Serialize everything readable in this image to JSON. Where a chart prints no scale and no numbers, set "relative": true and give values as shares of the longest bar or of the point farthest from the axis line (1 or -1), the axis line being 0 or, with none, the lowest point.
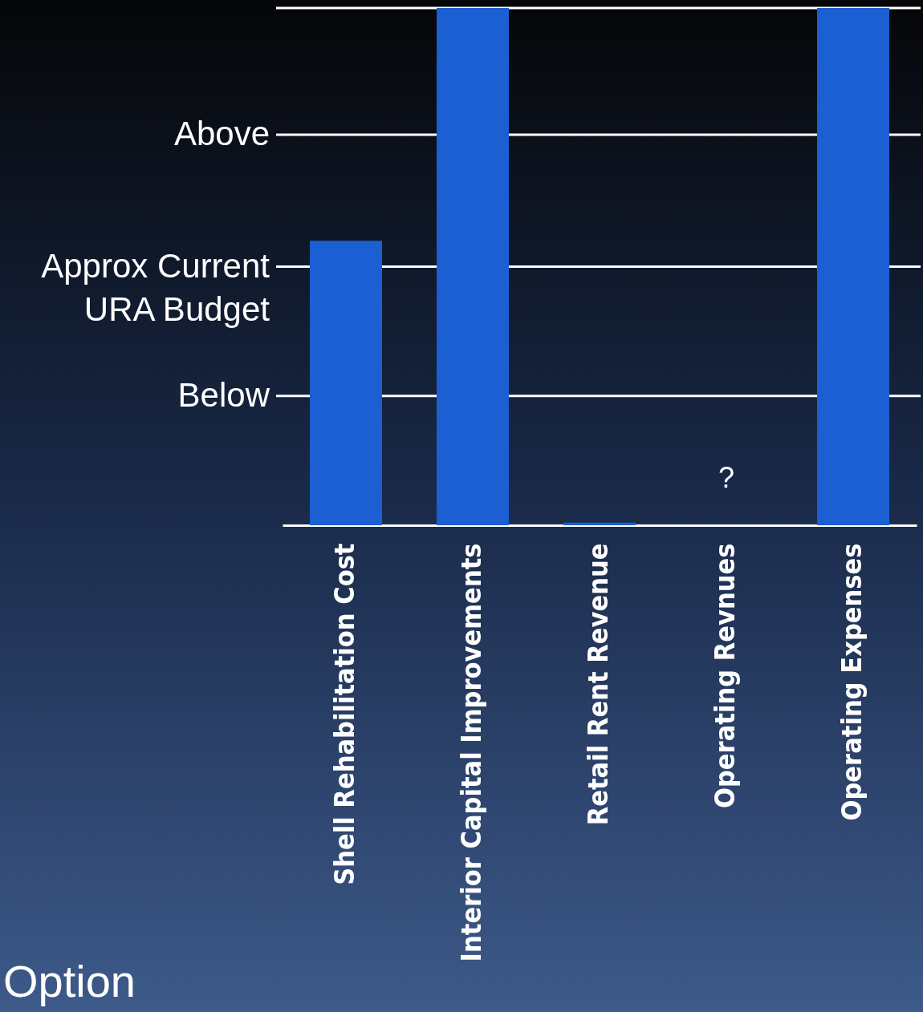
{
  "chart_data": {
    "type": "bar",
    "relative": true,
    "categories": [
      "Shell Rehabilitation Cost",
      "Interior Capital Improvements",
      "Retail Rent Revenue",
      "Operating Revnues",
      "Operating Expenses"
    ],
    "values": [
      0.55,
      1,
      0.005,
      null,
      1
    ],
    "color": "#1b5fd2",
    "ref_lines": [
      {
        "axis": "y",
        "value": 0.25,
        "label": "Below",
        "color": "#ffffff"
      },
      {
        "axis": "y",
        "value": 0.5,
        "label": "Approx Current URA Budget",
        "color": "#ffffff"
      },
      {
        "axis": "y",
        "value": 0.755,
        "label": "Above",
        "color": "#ffffff"
      },
      {
        "axis": "y",
        "value": 1,
        "label": null,
        "color": "#ffffff"
      }
    ],
    "annotations": [
      "?",
      "Option"
    ]
  }
}
